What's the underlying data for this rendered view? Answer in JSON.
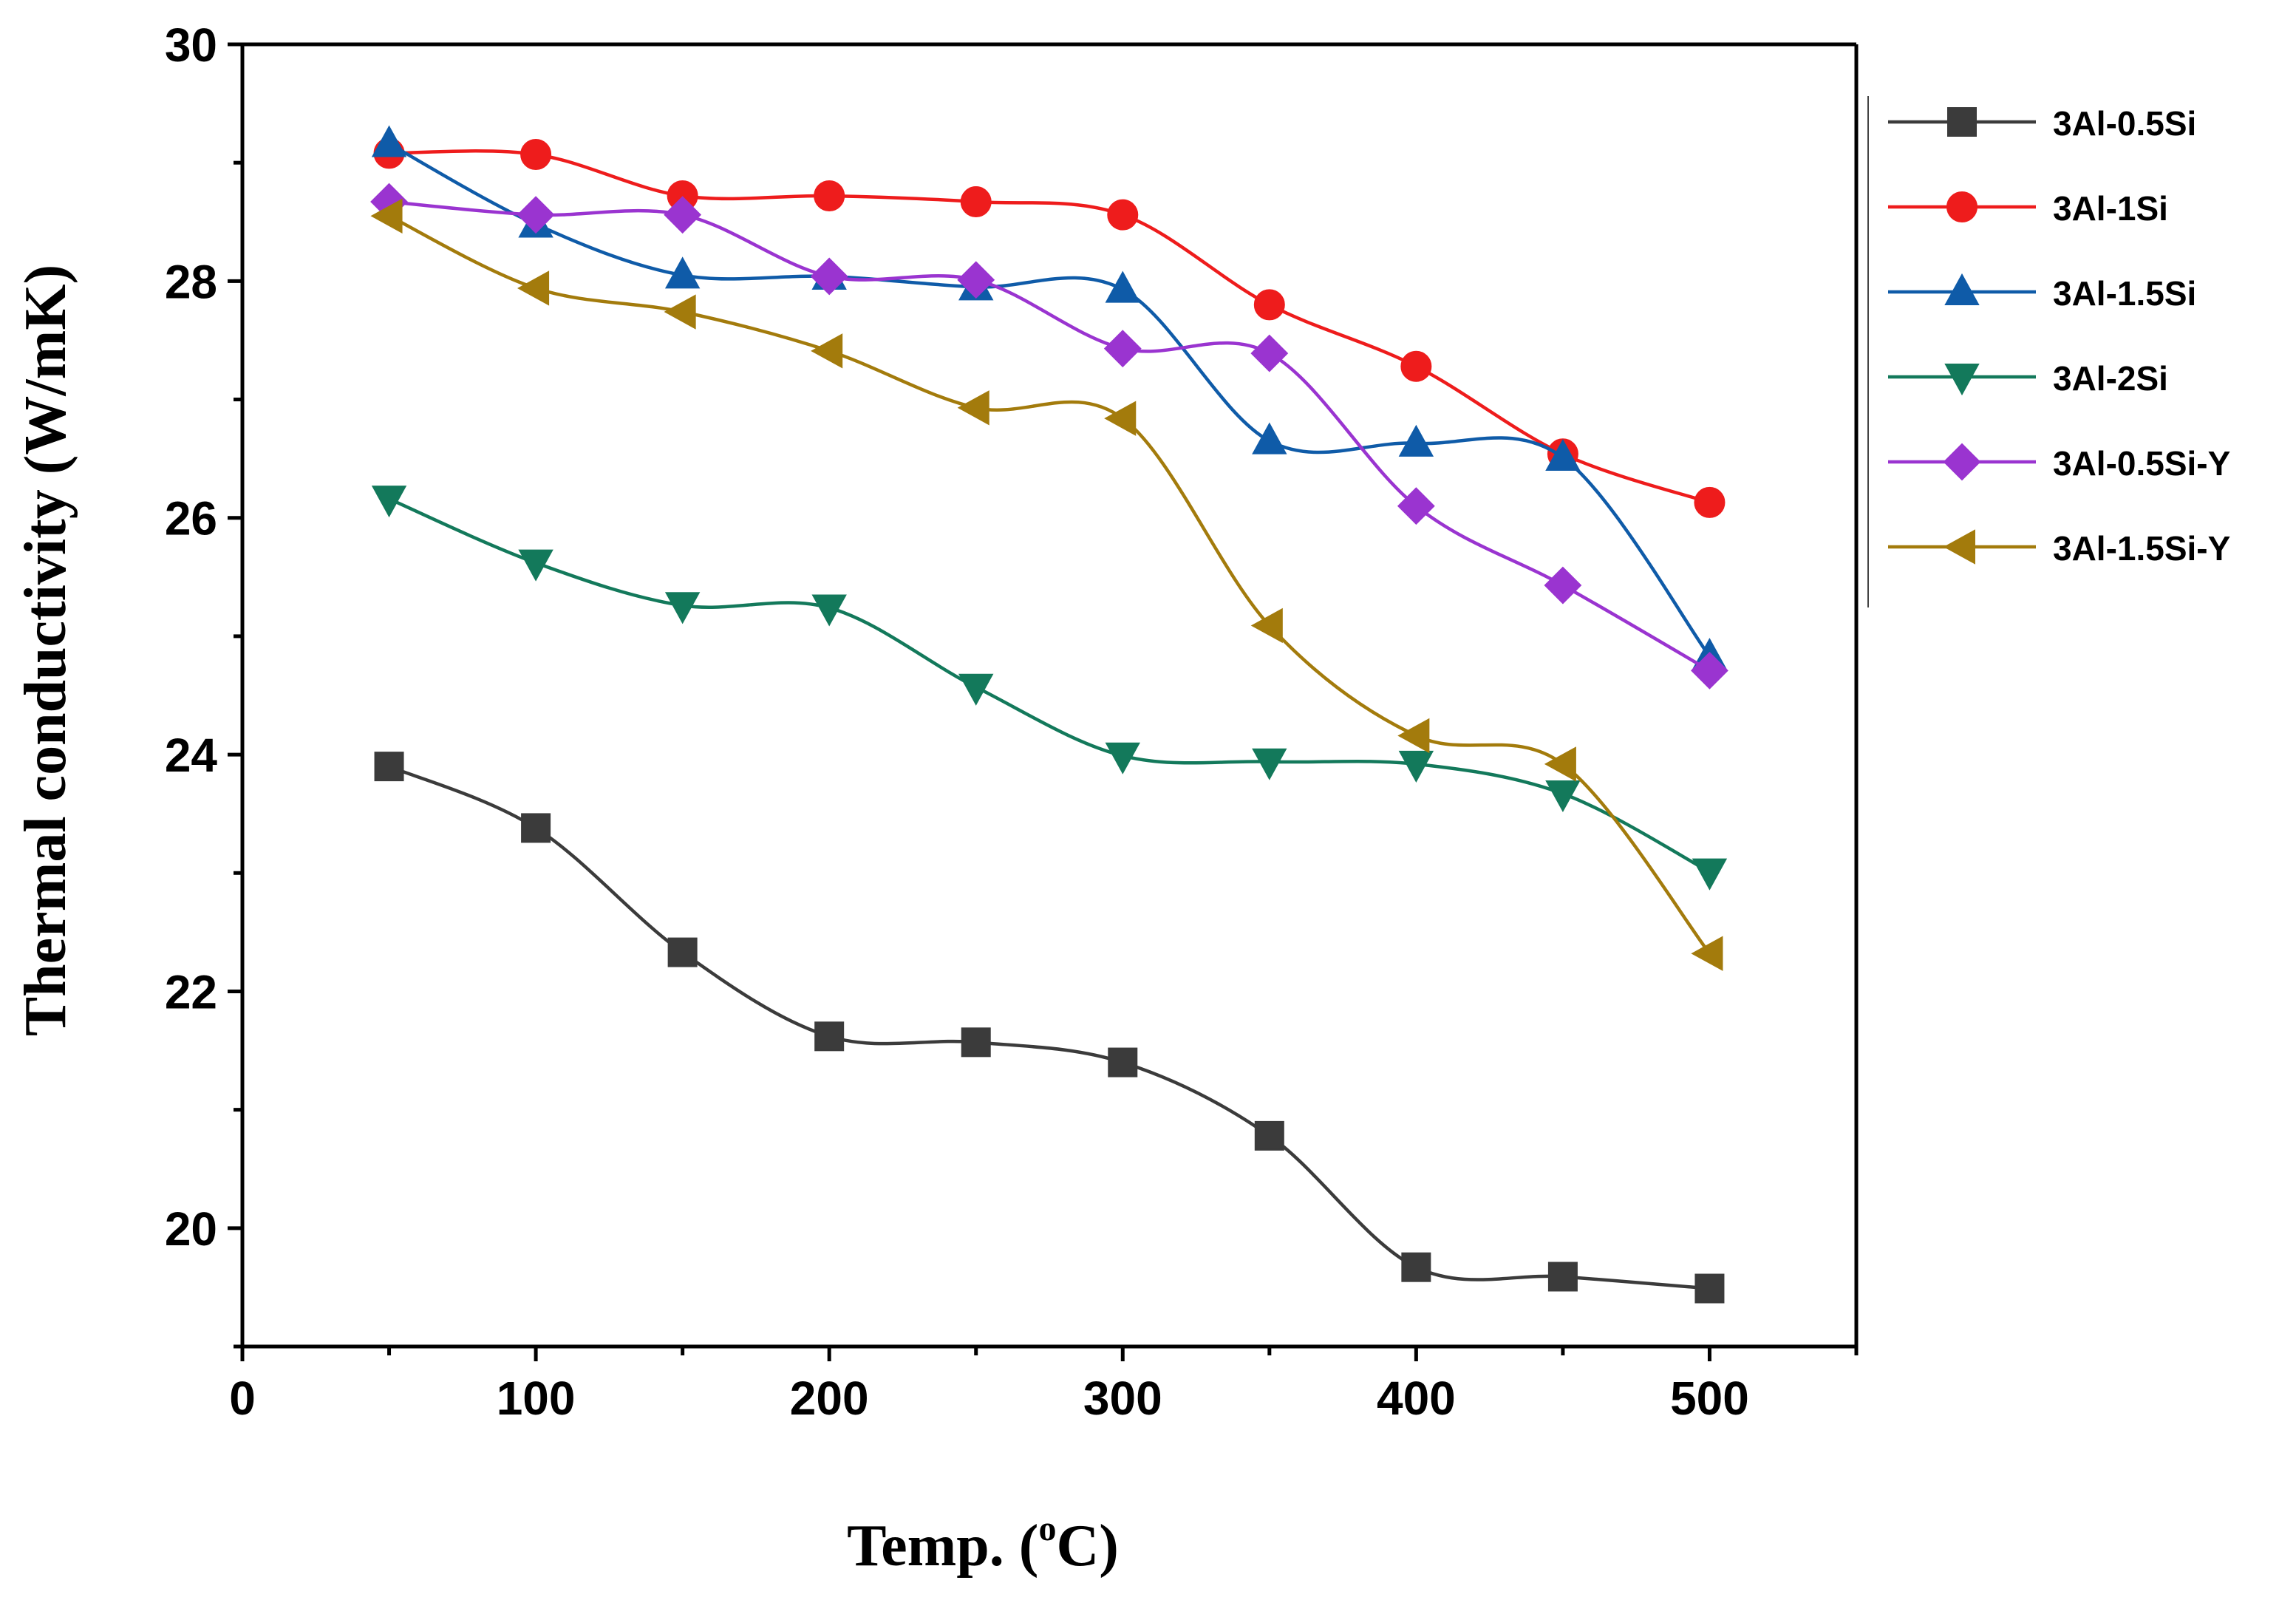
{
  "chart_data": {
    "type": "line",
    "smooth": true,
    "title": "",
    "xlabel_main": "Temp. (",
    "xlabel_sup": "o",
    "xlabel_unit": "C)",
    "ylabel": "Thermal conductivity (W/mK)",
    "xlim": [
      0,
      550
    ],
    "ylim": [
      19,
      30
    ],
    "xticks": [
      0,
      100,
      200,
      300,
      400,
      500
    ],
    "yticks": [
      20,
      22,
      24,
      26,
      28,
      30
    ],
    "x": [
      50,
      100,
      150,
      200,
      250,
      300,
      350,
      400,
      450,
      500
    ],
    "legend_position": "outside-right",
    "series": [
      {
        "name": "3Al-0.5Si",
        "color": "#3b3b3b",
        "marker": "square",
        "values": [
          23.9,
          23.38,
          22.33,
          21.62,
          21.57,
          21.4,
          20.78,
          19.67,
          19.59,
          19.49
        ]
      },
      {
        "name": "3Al-1Si",
        "color": "#ee1c1c",
        "marker": "circle",
        "values": [
          29.08,
          29.07,
          28.72,
          28.72,
          28.67,
          28.56,
          27.8,
          27.28,
          26.54,
          26.13
        ]
      },
      {
        "name": "3Al-1.5Si",
        "color": "#0f5ba8",
        "marker": "triangle-up",
        "values": [
          29.16,
          28.48,
          28.05,
          28.04,
          27.95,
          27.93,
          26.65,
          26.63,
          26.51,
          24.83
        ]
      },
      {
        "name": "3Al-2Si",
        "color": "#13795b",
        "marker": "triangle-down",
        "values": [
          26.16,
          25.62,
          25.26,
          25.24,
          24.57,
          23.99,
          23.94,
          23.92,
          23.67,
          23.01
        ]
      },
      {
        "name": "3Al-0.5Si-Y",
        "color": "#9a34d0",
        "marker": "diamond",
        "values": [
          28.67,
          28.56,
          28.56,
          28.04,
          28.01,
          27.43,
          27.39,
          26.1,
          25.43,
          24.71
        ]
      },
      {
        "name": "3Al-1.5Si-Y",
        "color": "#a37b0c",
        "marker": "triangle-left",
        "values": [
          28.55,
          27.94,
          27.74,
          27.41,
          26.93,
          26.84,
          25.09,
          24.16,
          23.92,
          22.32
        ]
      }
    ]
  }
}
